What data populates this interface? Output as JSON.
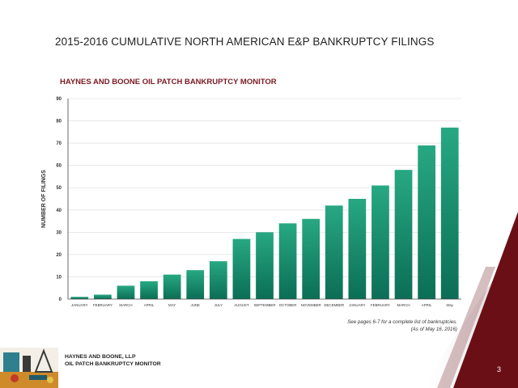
{
  "slide": {
    "title": "2015-2016 CUMULATIVE NORTH AMERICAN E&P BANKRUPTCY FILINGS",
    "footnote_line1": "See pages 6-7 for a complete list of bankruptcies.",
    "footnote_line2": "(As of May 16, 2016)",
    "footer_line1": "HAYNES AND BOONE, LLP",
    "footer_line2": "OIL PATCH BANKRUPTCY MONITOR",
    "page_number": "3"
  },
  "colors": {
    "bar_top": "#27a882",
    "bar_bottom": "#0b6e55",
    "title_accent": "#7a1a22",
    "corner_dark": "#6b0f17"
  },
  "chart_data": {
    "type": "bar",
    "title": "HAYNES AND BOONE OIL PATCH BANKRUPTCY MONITOR",
    "xlabel": "",
    "ylabel": "NUMBER OF FILINGS",
    "ylim": [
      0,
      90
    ],
    "yticks": [
      0,
      10,
      20,
      30,
      40,
      50,
      60,
      70,
      80,
      90
    ],
    "grid": true,
    "legend": "none",
    "categories": [
      "JANUARY",
      "FEBRUARY",
      "MARCH",
      "APRIL",
      "MAY",
      "JUNE",
      "JULY",
      "AUGUST",
      "SEPTEMBER",
      "OCTOBER",
      "NOVEMBER",
      "DECEMBER",
      "JANUARY",
      "FEBRUARY",
      "MARCH",
      "APRIL",
      "May"
    ],
    "values": [
      1,
      2,
      6,
      8,
      11,
      13,
      17,
      27,
      30,
      34,
      36,
      42,
      45,
      51,
      58,
      69,
      77
    ]
  }
}
